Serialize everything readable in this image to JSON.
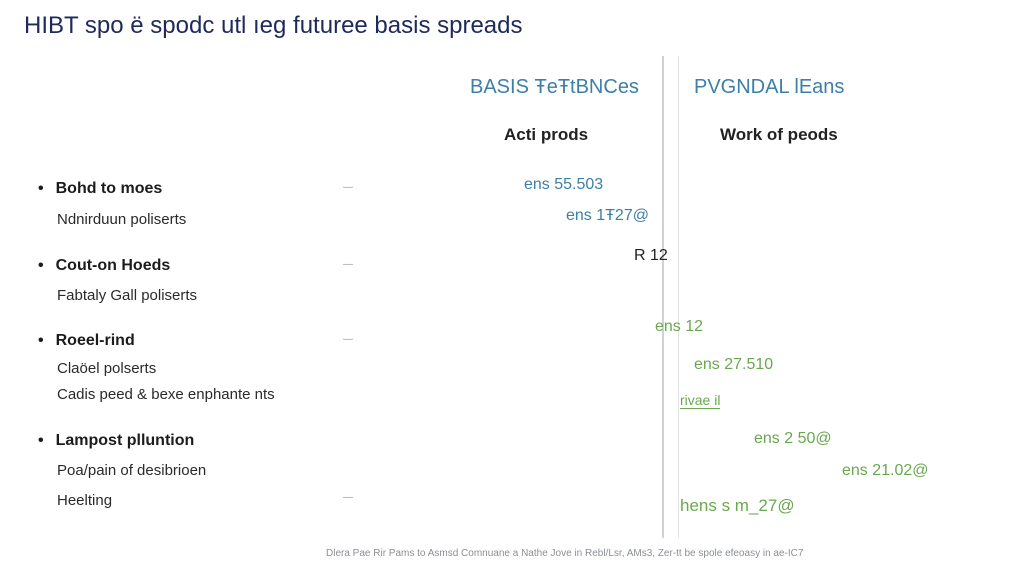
{
  "title": "HIBT spo ë spodc utl ıeg futuree basis spreads",
  "columns": {
    "left": {
      "header": "BASIS ŦeŦtBNCes",
      "subheader": "Acti prods"
    },
    "right": {
      "header": "PVGNDAL lEans",
      "subheader": "Work of peods"
    }
  },
  "sections": [
    {
      "head": "Bohd to moes",
      "items": [
        "Ndnirduun poliserts"
      ]
    },
    {
      "head": "Cout-on Hoeds",
      "items": [
        "Fabtaly Gall poliserts"
      ]
    },
    {
      "head": "Roeel-rind",
      "items": [
        "Claöel polserts",
        "Cadis peed & bexe enphante nts"
      ]
    },
    {
      "head": "Lampost plluntion",
      "items": [
        "Poa/pain of desibrioen",
        "Heelting"
      ]
    }
  ],
  "values": [
    {
      "text": "ens 55.503"
    },
    {
      "text": "ens 1Ŧ27@"
    },
    {
      "text": "R 12"
    },
    {
      "text": "ens 12"
    },
    {
      "text": "ens 27.510"
    },
    {
      "text": "rivae il"
    },
    {
      "text": "ens 2 50@"
    },
    {
      "text": "ens 21.02@"
    },
    {
      "text": "hens s m_27@"
    }
  ],
  "footer": "Dlera Pae Rir Pams to Asmsd Comnuane a Nathe Jove in Rebl/Lsr, AMs3, Zer-tt be spole efeoasy in ae-IC7",
  "colors": {
    "title": "#1f2a5c",
    "header": "#3d7fa6",
    "left_values": "#3d7fa6",
    "right_values": "#6aa84f"
  }
}
